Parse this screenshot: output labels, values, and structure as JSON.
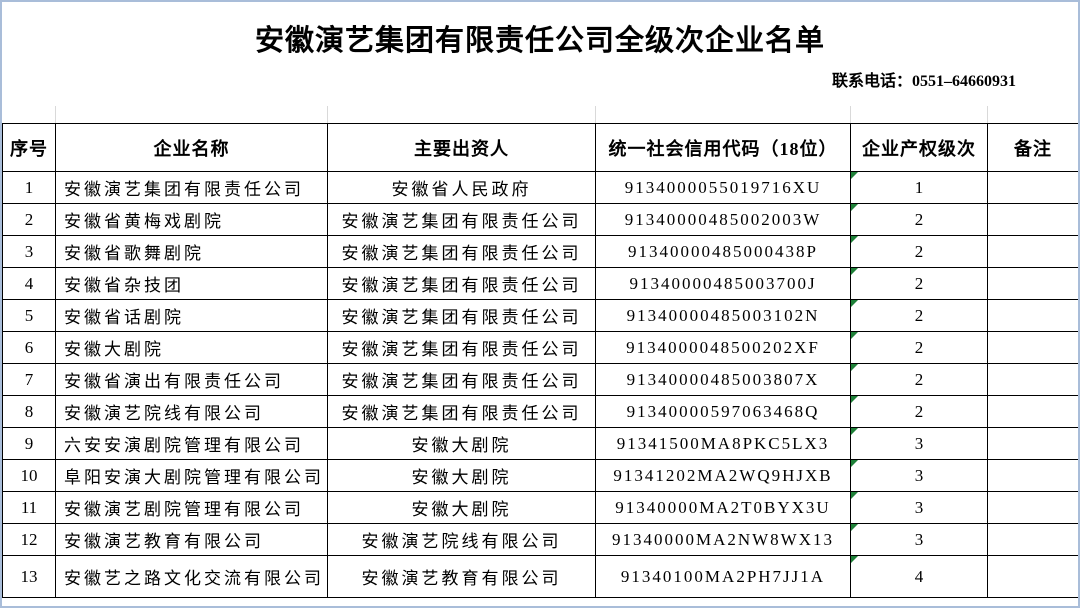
{
  "page": {
    "title": "安徽演艺集团有限责任公司全级次企业名单",
    "contact": "联系电话：0551–64660931"
  },
  "table": {
    "headers": [
      "序号",
      "企业名称",
      "主要出资人",
      "统一社会信用代码（18位）",
      "企业产权级次",
      "备注"
    ],
    "rows": [
      {
        "no": "1",
        "name": "安徽演艺集团有限责任公司",
        "investor": "安徽省人民政府",
        "code": "9134000055019716XU",
        "level": "1",
        "remark": ""
      },
      {
        "no": "2",
        "name": "安徽省黄梅戏剧院",
        "investor": "安徽演艺集团有限责任公司",
        "code": "91340000485002003W",
        "level": "2",
        "remark": ""
      },
      {
        "no": "3",
        "name": "安徽省歌舞剧院",
        "investor": "安徽演艺集团有限责任公司",
        "code": "91340000485000438P",
        "level": "2",
        "remark": ""
      },
      {
        "no": "4",
        "name": "安徽省杂技团",
        "investor": "安徽演艺集团有限责任公司",
        "code": "91340000485003700J",
        "level": "2",
        "remark": ""
      },
      {
        "no": "5",
        "name": "安徽省话剧院",
        "investor": "安徽演艺集团有限责任公司",
        "code": "91340000485003102N",
        "level": "2",
        "remark": ""
      },
      {
        "no": "6",
        "name": "安徽大剧院",
        "investor": "安徽演艺集团有限责任公司",
        "code": "9134000048500202XF",
        "level": "2",
        "remark": ""
      },
      {
        "no": "7",
        "name": "安徽省演出有限责任公司",
        "investor": "安徽演艺集团有限责任公司",
        "code": "91340000485003807X",
        "level": "2",
        "remark": ""
      },
      {
        "no": "8",
        "name": "安徽演艺院线有限公司",
        "investor": "安徽演艺集团有限责任公司",
        "code": "91340000597063468Q",
        "level": "2",
        "remark": ""
      },
      {
        "no": "9",
        "name": "六安安演剧院管理有限公司",
        "investor": "安徽大剧院",
        "code": "91341500MA8PKC5LX3",
        "level": "3",
        "remark": ""
      },
      {
        "no": "10",
        "name": "阜阳安演大剧院管理有限公司",
        "investor": "安徽大剧院",
        "code": "91341202MA2WQ9HJXB",
        "level": "3",
        "remark": ""
      },
      {
        "no": "11",
        "name": "安徽演艺剧院管理有限公司",
        "investor": "安徽大剧院",
        "code": "91340000MA2T0BYX3U",
        "level": "3",
        "remark": ""
      },
      {
        "no": "12",
        "name": "安徽演艺教育有限公司",
        "investor": "安徽演艺院线有限公司",
        "code": "91340000MA2NW8WX13",
        "level": "3",
        "remark": ""
      },
      {
        "no": "13",
        "name": "安徽艺之路文化交流有限公司",
        "investor": "安徽演艺教育有限公司",
        "code": "91340100MA2PH7JJ1A",
        "level": "4",
        "remark": ""
      }
    ]
  },
  "icons": {
    "excel_error_triangle": "green corner triangle in each 企业产权级次 cell"
  },
  "colors": {
    "page_border": "#a9bdd9",
    "table_border": "#000000",
    "error_triangle_green": "#1e8038",
    "text": "#000000"
  }
}
